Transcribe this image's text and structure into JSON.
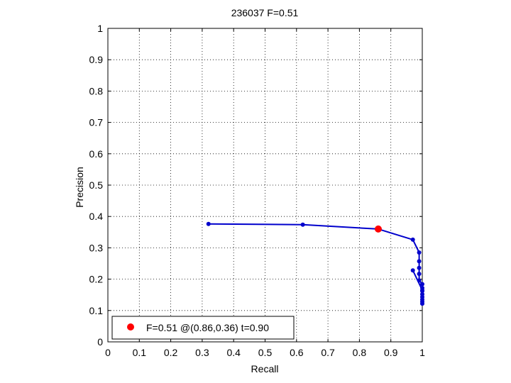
{
  "chart_data": {
    "type": "line",
    "title": "236037 F=0.51",
    "xlabel": "Recall",
    "ylabel": "Precision",
    "xlim": [
      0,
      1
    ],
    "ylim": [
      0,
      1
    ],
    "grid": true,
    "xticks": [
      0,
      0.1,
      0.2,
      0.3,
      0.4,
      0.5,
      0.6,
      0.7,
      0.8,
      0.9,
      1
    ],
    "xtick_labels": [
      "0",
      "0.1",
      "0.2",
      "0.3",
      "0.4",
      "0.5",
      "0.6",
      "0.7",
      "0.8",
      "0.9",
      "1"
    ],
    "yticks": [
      0,
      0.1,
      0.2,
      0.3,
      0.4,
      0.5,
      0.6,
      0.7,
      0.8,
      0.9,
      1
    ],
    "ytick_labels": [
      "0",
      "0.1",
      "0.2",
      "0.3",
      "0.4",
      "0.5",
      "0.6",
      "0.7",
      "0.8",
      "0.9",
      "1"
    ],
    "series": [
      {
        "color": "#0000cc",
        "x": [
          0.32,
          0.62,
          0.86,
          0.97,
          0.99,
          0.99,
          0.99,
          0.99,
          0.99,
          1.0,
          1.0,
          1.0,
          1.0,
          1.0,
          1.0,
          1.0,
          1.0,
          1.0,
          0.97
        ],
        "y": [
          0.376,
          0.374,
          0.36,
          0.326,
          0.285,
          0.257,
          0.236,
          0.217,
          0.196,
          0.184,
          0.172,
          0.162,
          0.152,
          0.143,
          0.135,
          0.128,
          0.122,
          0.165,
          0.228
        ]
      }
    ],
    "best_point": {
      "recall": 0.86,
      "precision": 0.36,
      "color": "#ff0000"
    },
    "legend": {
      "position": "bottom-left",
      "entries": [
        "F=0.51 @(0.86,0.36) t=0.90"
      ]
    }
  }
}
